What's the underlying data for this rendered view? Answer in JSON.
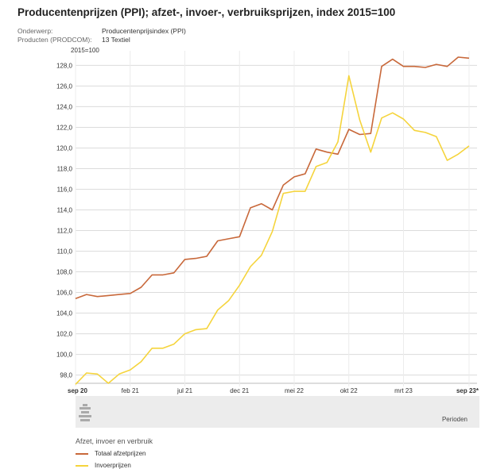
{
  "title": "Producentenprijzen (PPI); afzet-, invoer-, verbruiksprijzen, index 2015=100",
  "meta": [
    {
      "label": "Onderwerp:",
      "value": "Producentenprijsindex (PPI)"
    },
    {
      "label": "Producten (PRODCOM):",
      "value": "13 Textiel"
    }
  ],
  "footer": {
    "periods_label": "Perioden"
  },
  "legend": {
    "title": "Afzet, invoer en verbruik",
    "items": [
      {
        "label": "Totaal afzetprijzen",
        "color": "#c8683a"
      },
      {
        "label": "Invoerprijzen",
        "color": "#f5d43c"
      }
    ]
  },
  "chart_data": {
    "type": "line",
    "ylabel": "2015=100",
    "ylim": [
      97.2,
      128.8
    ],
    "yticks": [
      "98,0",
      "100,0",
      "102,0",
      "104,0",
      "106,0",
      "108,0",
      "110,0",
      "112,0",
      "114,0",
      "116,0",
      "118,0",
      "120,0",
      "122,0",
      "124,0",
      "126,0",
      "128,0"
    ],
    "x": [
      "sep 20",
      "okt 20",
      "nov 20",
      "dec 20",
      "jan 21",
      "feb 21",
      "mrt 21",
      "apr 21",
      "mei 21",
      "jun 21",
      "jul 21",
      "aug 21",
      "sep 21",
      "okt 21",
      "nov 21",
      "dec 21",
      "jan 22",
      "feb 22",
      "mrt 22",
      "apr 22",
      "mei 22",
      "jun 22",
      "jul 22",
      "aug 22",
      "sep 22",
      "okt 22",
      "nov 22",
      "dec 22",
      "jan 23",
      "feb 23",
      "mrt 23",
      "apr 23",
      "mei 23",
      "jun 23",
      "jul 23",
      "aug 23",
      "sep 23"
    ],
    "xticks": [
      {
        "label": "sep 20",
        "index": 0,
        "bold": true
      },
      {
        "label": "feb 21",
        "index": 5,
        "bold": false
      },
      {
        "label": "jul 21",
        "index": 10,
        "bold": false
      },
      {
        "label": "dec 21",
        "index": 15,
        "bold": false
      },
      {
        "label": "mei 22",
        "index": 20,
        "bold": false
      },
      {
        "label": "okt 22",
        "index": 25,
        "bold": false
      },
      {
        "label": "mrt 23",
        "index": 30,
        "bold": false
      },
      {
        "label": "sep 23*",
        "index": 36,
        "bold": true
      }
    ],
    "series": [
      {
        "name": "Totaal afzetprijzen",
        "color": "#c8683a",
        "values": [
          105.4,
          105.8,
          105.6,
          105.7,
          105.8,
          105.9,
          106.5,
          107.7,
          107.7,
          107.9,
          109.2,
          109.3,
          109.5,
          111.0,
          111.2,
          111.4,
          114.2,
          114.6,
          114.0,
          116.4,
          117.2,
          117.5,
          119.9,
          119.6,
          119.4,
          121.8,
          121.3,
          121.4,
          127.9,
          128.6,
          127.9,
          127.9,
          127.8,
          128.1,
          127.9,
          128.8,
          128.7
        ]
      },
      {
        "name": "Invoerprijzen",
        "color": "#f5d43c",
        "values": [
          97.1,
          98.2,
          98.1,
          97.2,
          98.1,
          98.5,
          99.3,
          100.6,
          100.6,
          101.0,
          102.0,
          102.4,
          102.5,
          104.3,
          105.2,
          106.7,
          108.5,
          109.6,
          111.9,
          115.6,
          115.8,
          115.8,
          118.2,
          118.6,
          120.6,
          127.0,
          122.7,
          119.6,
          122.9,
          123.4,
          122.8,
          121.7,
          121.5,
          121.1,
          118.8,
          119.4,
          120.2
        ]
      }
    ]
  }
}
